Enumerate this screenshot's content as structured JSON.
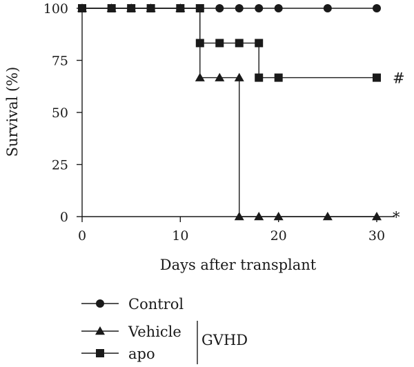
{
  "chart_data": {
    "type": "line",
    "step": true,
    "xlabel": "Days after transplant",
    "ylabel": "Survival (%)",
    "xlim": [
      0,
      32
    ],
    "ylim": [
      0,
      100
    ],
    "xticks": [
      0,
      10,
      20,
      30
    ],
    "yticks": [
      0,
      25,
      50,
      75,
      100
    ],
    "grid": false,
    "series": [
      {
        "name": "Control",
        "marker": "circle",
        "x": [
          0,
          3,
          5,
          7,
          10,
          12,
          14,
          16,
          18,
          20,
          25,
          30
        ],
        "y": [
          100,
          100,
          100,
          100,
          100,
          100,
          100,
          100,
          100,
          100,
          100,
          100
        ],
        "annotation": ""
      },
      {
        "name": "Vehicle",
        "marker": "triangle",
        "x": [
          0,
          3,
          5,
          7,
          10,
          12,
          14,
          16,
          16,
          18,
          20,
          25,
          30
        ],
        "y": [
          100,
          100,
          100,
          100,
          100,
          66.7,
          66.7,
          66.7,
          0,
          0,
          0,
          0,
          0
        ],
        "annotation": "*"
      },
      {
        "name": "apo",
        "marker": "square",
        "x": [
          0,
          3,
          5,
          7,
          10,
          12,
          12,
          14,
          16,
          18,
          18,
          20,
          30
        ],
        "y": [
          100,
          100,
          100,
          100,
          100,
          100,
          83.3,
          83.3,
          83.3,
          83.3,
          66.7,
          66.7,
          66.7
        ],
        "annotation": "#"
      }
    ],
    "legend": {
      "placement": "bottom-left",
      "group_label": "GVHD"
    }
  }
}
